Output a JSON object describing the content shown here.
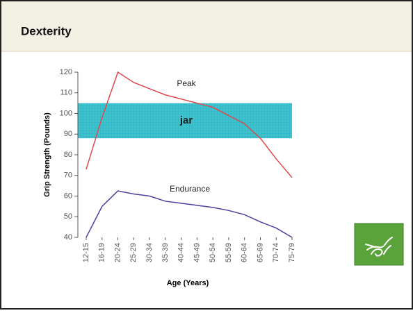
{
  "chart_data": {
    "type": "line",
    "title": "Dexterity",
    "ylabel": "Grip Strength (Pounds)",
    "xlabel": "Age (Years)",
    "categories": [
      "12-15",
      "16-19",
      "20-24",
      "25-29",
      "30-34",
      "35-39",
      "40-44",
      "45-49",
      "50-54",
      "55-59",
      "60-64",
      "65-69",
      "70-74",
      "75-79"
    ],
    "series": [
      {
        "name": "Peak",
        "color": "#e0474c",
        "values": [
          73,
          98,
          120,
          115,
          112,
          109,
          107,
          105,
          103,
          99,
          95,
          88,
          78,
          69
        ]
      },
      {
        "name": "Endurance",
        "color": "#4a3f9e",
        "values": [
          40,
          55,
          62.5,
          61,
          60,
          57.5,
          56.5,
          55.5,
          54.5,
          53,
          51,
          47.5,
          44.5,
          40
        ]
      }
    ],
    "ylim": [
      40,
      120
    ],
    "yticks": [
      40,
      50,
      60,
      70,
      80,
      90,
      100,
      110,
      120
    ],
    "highlight": {
      "label": "jar",
      "range": [
        88,
        105
      ],
      "color": "#3cc3cf"
    }
  }
}
